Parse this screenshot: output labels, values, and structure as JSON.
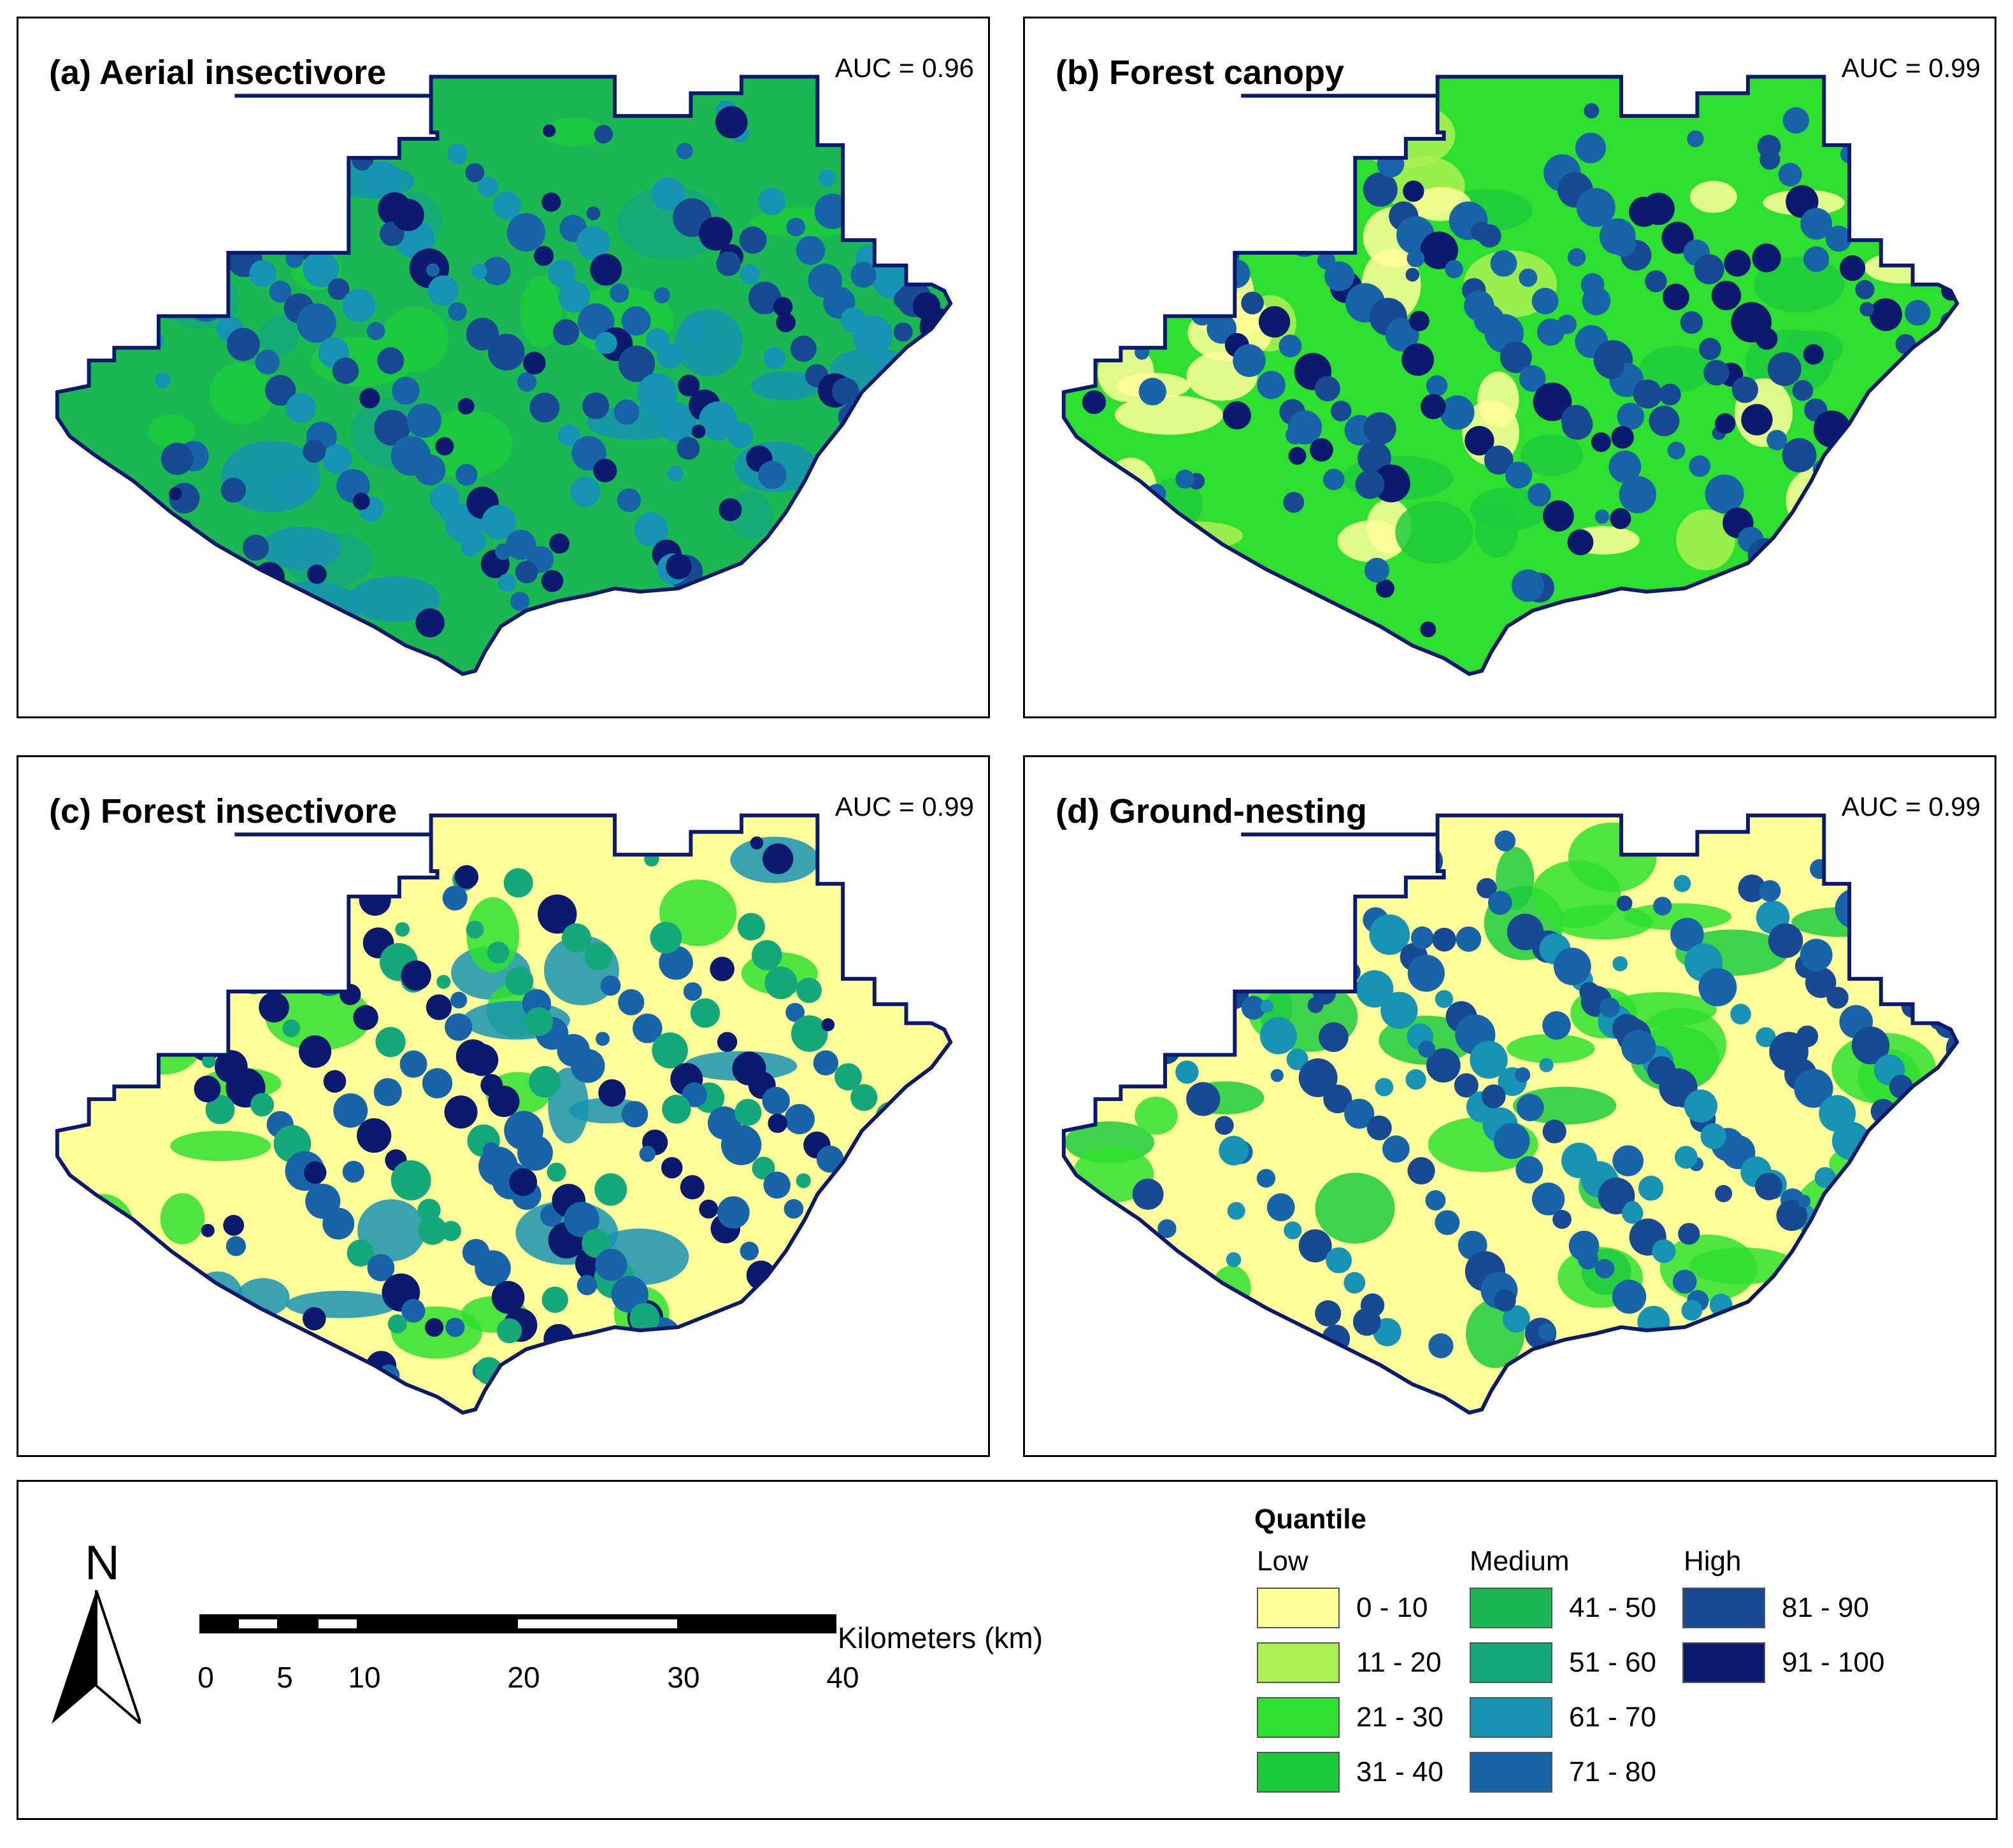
{
  "panels": [
    {
      "title": "(a) Aerial insectivore",
      "auc": "AUC = 0.96",
      "palette": "aerial"
    },
    {
      "title": "(b) Forest canopy",
      "auc": "AUC = 0.99",
      "palette": "canopy"
    },
    {
      "title": "(c) Forest insectivore",
      "auc": "AUC = 0.99",
      "palette": "insectivore"
    },
    {
      "title": "(d) Ground-nesting",
      "auc": "AUC = 0.99",
      "palette": "ground"
    }
  ],
  "legend": {
    "north": "N",
    "scale": {
      "unit": "Kilometers (km)",
      "ticks": [
        "0",
        "5",
        "10",
        "20",
        "30",
        "40"
      ]
    },
    "title": "Quantile",
    "groups": [
      "Low",
      "Medium",
      "High"
    ],
    "classes": [
      {
        "label": "0 - 10",
        "color": "#ffff99"
      },
      {
        "label": "11 - 20",
        "color": "#aaf050"
      },
      {
        "label": "21 - 30",
        "color": "#2ee02e"
      },
      {
        "label": "31 - 40",
        "color": "#1ccb3c"
      },
      {
        "label": "41 - 50",
        "color": "#19b853"
      },
      {
        "label": "51 - 60",
        "color": "#14a97a"
      },
      {
        "label": "61 - 70",
        "color": "#1793b3"
      },
      {
        "label": "71 - 80",
        "color": "#1765a8"
      },
      {
        "label": "81 - 90",
        "color": "#174a93"
      },
      {
        "label": "91 - 100",
        "color": "#0b1a6e"
      }
    ]
  }
}
